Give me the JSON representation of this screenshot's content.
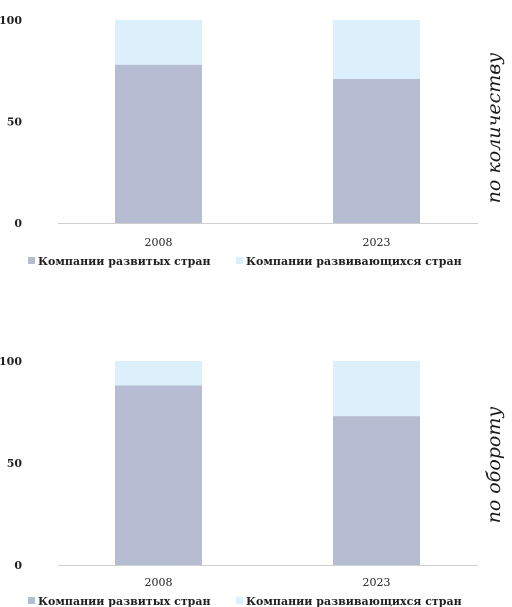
{
  "chart_data": [
    {
      "type": "bar",
      "stacked": true,
      "side_label": "по количеству",
      "categories": [
        "2008",
        "2023"
      ],
      "series": [
        {
          "name": "Компании развитых стран",
          "values": [
            78,
            71
          ],
          "color": "#b6bdd2"
        },
        {
          "name": "Компании развивающихся стран",
          "values": [
            22,
            29
          ],
          "color": "#dcf0fb"
        }
      ],
      "y_ticks": [
        "0",
        "50",
        "100"
      ],
      "ylim": [
        0,
        100
      ],
      "grid": false,
      "legend": "bottom"
    },
    {
      "type": "bar",
      "stacked": true,
      "side_label": "по обороту",
      "categories": [
        "2008",
        "2023"
      ],
      "series": [
        {
          "name": "Компании развитых стран",
          "values": [
            88,
            73
          ],
          "color": "#b6bdd2"
        },
        {
          "name": "Компании развивающихся стран",
          "values": [
            12,
            27
          ],
          "color": "#dcf0fb"
        }
      ],
      "y_ticks": [
        "0",
        "50",
        "100"
      ],
      "ylim": [
        0,
        100
      ],
      "grid": false,
      "legend": "bottom"
    }
  ]
}
